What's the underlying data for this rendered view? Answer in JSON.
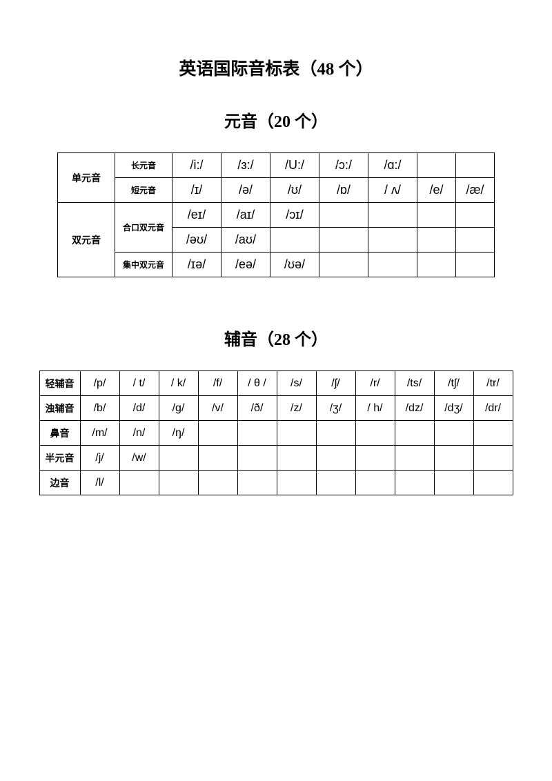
{
  "title_main": "英语国际音标表（48 个）",
  "title_vowels": "元音（20 个）",
  "title_consonants": "辅音（28 个）",
  "vowel_table": {
    "rows": [
      {
        "cat_a": "单元音",
        "cat_a_rowspan": 2,
        "cat_b": "长元音",
        "cells": [
          "/i:/",
          "/ɜ:/",
          "/U:/",
          "/ɔ:/",
          "/ɑ:/",
          "",
          ""
        ]
      },
      {
        "cat_b": "短元音",
        "cells": [
          "/ɪ/",
          "/ə/",
          "/ʊ/",
          "/ɒ/",
          "/ ʌ/",
          "/e/",
          "/æ/"
        ]
      },
      {
        "cat_a": "双元音",
        "cat_a_rowspan": 3,
        "cat_b": "合口双元音",
        "cat_b_rowspan": 2,
        "cells": [
          "/eɪ/",
          "/aɪ/",
          "/ɔɪ/",
          "",
          "",
          "",
          ""
        ]
      },
      {
        "cells": [
          "/əʊ/",
          "/aʊ/",
          "",
          "",
          "",
          "",
          ""
        ]
      },
      {
        "cat_b": "集中双元音",
        "cells": [
          "/ɪə/",
          "/eə/",
          "/ʊə/",
          "",
          "",
          "",
          ""
        ]
      }
    ]
  },
  "consonant_table": {
    "rows": [
      {
        "label": "轻辅音",
        "cells": [
          "/p/",
          "/ t/",
          "/ k/",
          "/f/",
          "/ θ /",
          "/s/",
          "/ʃ/",
          "/r/",
          "/ts/",
          "/tʃ/",
          "/tr/"
        ]
      },
      {
        "label": "浊辅音",
        "cells": [
          "/b/",
          "/d/",
          "/g/",
          "/v/",
          "/ð/",
          "/z/",
          "/ʒ/",
          "/ h/",
          "/dz/",
          "/dʒ/",
          "/dr/"
        ]
      },
      {
        "label": "鼻音",
        "cells": [
          "/m/",
          "/n/",
          "/ŋ/",
          "",
          "",
          "",
          "",
          "",
          "",
          "",
          ""
        ]
      },
      {
        "label": "半元音",
        "cells": [
          "/j/",
          "/w/",
          "",
          "",
          "",
          "",
          "",
          "",
          "",
          "",
          ""
        ]
      },
      {
        "label": "边音",
        "cells": [
          "/l/",
          "",
          "",
          "",
          "",
          "",
          "",
          "",
          "",
          "",
          ""
        ]
      }
    ]
  }
}
